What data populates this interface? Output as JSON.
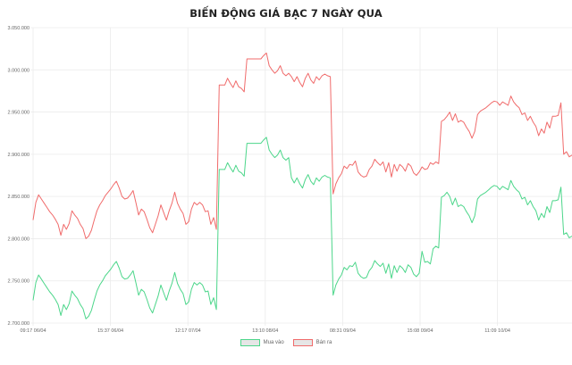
{
  "chart_data": {
    "type": "line",
    "title": "BIẾN ĐỘNG GIÁ BẠC 7 NGÀY QUA",
    "xlabel": "",
    "ylabel": "",
    "ylim": [
      2700000,
      3050000
    ],
    "yticks": [
      "3.050.000",
      "3.000.000",
      "2.950.000",
      "2.900.000",
      "2.850.000",
      "2.800.000",
      "2.750.000",
      "2.700.000"
    ],
    "ytick_values": [
      3050000,
      3000000,
      2950000,
      2900000,
      2850000,
      2800000,
      2750000,
      2700000
    ],
    "xticks": [
      "09:17 06/04",
      "15:37 06/04",
      "12:17 07/04",
      "13:10 08/04",
      "08:31 09/04",
      "15:08 09/04",
      "11:09 10/04"
    ],
    "grid": true,
    "legend_position": "bottom",
    "series": [
      {
        "name": "Mua vào",
        "color": "#4cd68a",
        "values": [
          2727000,
          2748000,
          2757000,
          2752000,
          2747000,
          2742000,
          2737000,
          2733000,
          2728000,
          2722000,
          2709000,
          2722000,
          2716000,
          2723000,
          2738000,
          2733000,
          2729000,
          2722000,
          2717000,
          2705000,
          2708000,
          2715000,
          2727000,
          2738000,
          2745000,
          2750000,
          2756000,
          2760000,
          2764000,
          2769000,
          2773000,
          2765000,
          2755000,
          2752000,
          2753000,
          2757000,
          2762000,
          2748000,
          2733000,
          2740000,
          2737000,
          2728000,
          2718000,
          2712000,
          2722000,
          2732000,
          2745000,
          2736000,
          2727000,
          2738000,
          2747000,
          2760000,
          2747000,
          2740000,
          2735000,
          2722000,
          2725000,
          2740000,
          2748000,
          2745000,
          2748000,
          2745000,
          2737000,
          2738000,
          2722000,
          2730000,
          2716000,
          2882000,
          2882000,
          2882000,
          2890000,
          2884000,
          2879000,
          2887000,
          2880000,
          2878000,
          2874000,
          2913000,
          2913000,
          2913000,
          2913000,
          2913000,
          2913000,
          2917000,
          2920000,
          2905000,
          2900000,
          2896000,
          2899000,
          2905000,
          2896000,
          2893000,
          2896000,
          2872000,
          2866000,
          2872000,
          2865000,
          2860000,
          2870000,
          2876000,
          2868000,
          2864000,
          2872000,
          2868000,
          2873000,
          2875000,
          2873000,
          2872000,
          2733000,
          2745000,
          2752000,
          2757000,
          2766000,
          2763000,
          2768000,
          2767000,
          2772000,
          2759000,
          2755000,
          2753000,
          2754000,
          2762000,
          2766000,
          2774000,
          2770000,
          2767000,
          2771000,
          2759000,
          2770000,
          2753000,
          2768000,
          2760000,
          2768000,
          2765000,
          2760000,
          2769000,
          2766000,
          2758000,
          2755000,
          2759000,
          2785000,
          2772000,
          2773000,
          2770000,
          2788000,
          2791000,
          2789000,
          2849000,
          2851000,
          2855000,
          2850000,
          2840000,
          2848000,
          2838000,
          2840000,
          2838000,
          2832000,
          2827000,
          2819000,
          2827000,
          2847000,
          2851000,
          2853000,
          2855000,
          2858000,
          2861000,
          2863000,
          2862000,
          2858000,
          2862000,
          2860000,
          2858000,
          2869000,
          2862000,
          2858000,
          2855000,
          2847000,
          2849000,
          2840000,
          2845000,
          2838000,
          2833000,
          2822000,
          2830000,
          2825000,
          2838000,
          2831000,
          2845000,
          2845000,
          2846000,
          2861000,
          2805000,
          2807000,
          2801000,
          2803000
        ]
      },
      {
        "name": "Bán ra",
        "color": "#f06b6b",
        "values": [
          2822000,
          2843000,
          2852000,
          2847000,
          2842000,
          2837000,
          2832000,
          2828000,
          2823000,
          2817000,
          2804000,
          2817000,
          2811000,
          2818000,
          2833000,
          2828000,
          2824000,
          2817000,
          2812000,
          2800000,
          2803000,
          2810000,
          2822000,
          2833000,
          2840000,
          2845000,
          2851000,
          2855000,
          2859000,
          2864000,
          2868000,
          2860000,
          2850000,
          2847000,
          2848000,
          2852000,
          2857000,
          2843000,
          2828000,
          2835000,
          2832000,
          2823000,
          2813000,
          2807000,
          2817000,
          2827000,
          2840000,
          2831000,
          2822000,
          2833000,
          2842000,
          2855000,
          2842000,
          2835000,
          2830000,
          2817000,
          2820000,
          2835000,
          2843000,
          2840000,
          2843000,
          2840000,
          2832000,
          2833000,
          2817000,
          2825000,
          2811000,
          2982000,
          2982000,
          2982000,
          2990000,
          2984000,
          2979000,
          2987000,
          2980000,
          2978000,
          2974000,
          3013000,
          3013000,
          3013000,
          3013000,
          3013000,
          3013000,
          3017000,
          3020000,
          3005000,
          3000000,
          2996000,
          2999000,
          3005000,
          2996000,
          2993000,
          2996000,
          2992000,
          2986000,
          2992000,
          2985000,
          2980000,
          2990000,
          2996000,
          2988000,
          2984000,
          2992000,
          2988000,
          2993000,
          2995000,
          2993000,
          2992000,
          2853000,
          2865000,
          2872000,
          2877000,
          2886000,
          2883000,
          2888000,
          2887000,
          2892000,
          2879000,
          2875000,
          2873000,
          2874000,
          2882000,
          2886000,
          2894000,
          2890000,
          2887000,
          2891000,
          2879000,
          2890000,
          2873000,
          2888000,
          2880000,
          2888000,
          2885000,
          2880000,
          2889000,
          2886000,
          2878000,
          2875000,
          2879000,
          2885000,
          2882000,
          2883000,
          2890000,
          2888000,
          2891000,
          2889000,
          2939000,
          2941000,
          2945000,
          2950000,
          2940000,
          2948000,
          2938000,
          2940000,
          2938000,
          2932000,
          2927000,
          2919000,
          2927000,
          2947000,
          2951000,
          2953000,
          2955000,
          2958000,
          2961000,
          2963000,
          2962000,
          2958000,
          2962000,
          2960000,
          2958000,
          2969000,
          2962000,
          2958000,
          2955000,
          2947000,
          2949000,
          2940000,
          2945000,
          2938000,
          2933000,
          2922000,
          2930000,
          2925000,
          2938000,
          2931000,
          2945000,
          2945000,
          2946000,
          2961000,
          2900000,
          2903000,
          2897000,
          2899000
        ]
      }
    ]
  },
  "legend": {
    "items": [
      {
        "label": "Mua vào",
        "color": "#4cd68a"
      },
      {
        "label": "Bán ra",
        "color": "#f06b6b"
      }
    ]
  }
}
